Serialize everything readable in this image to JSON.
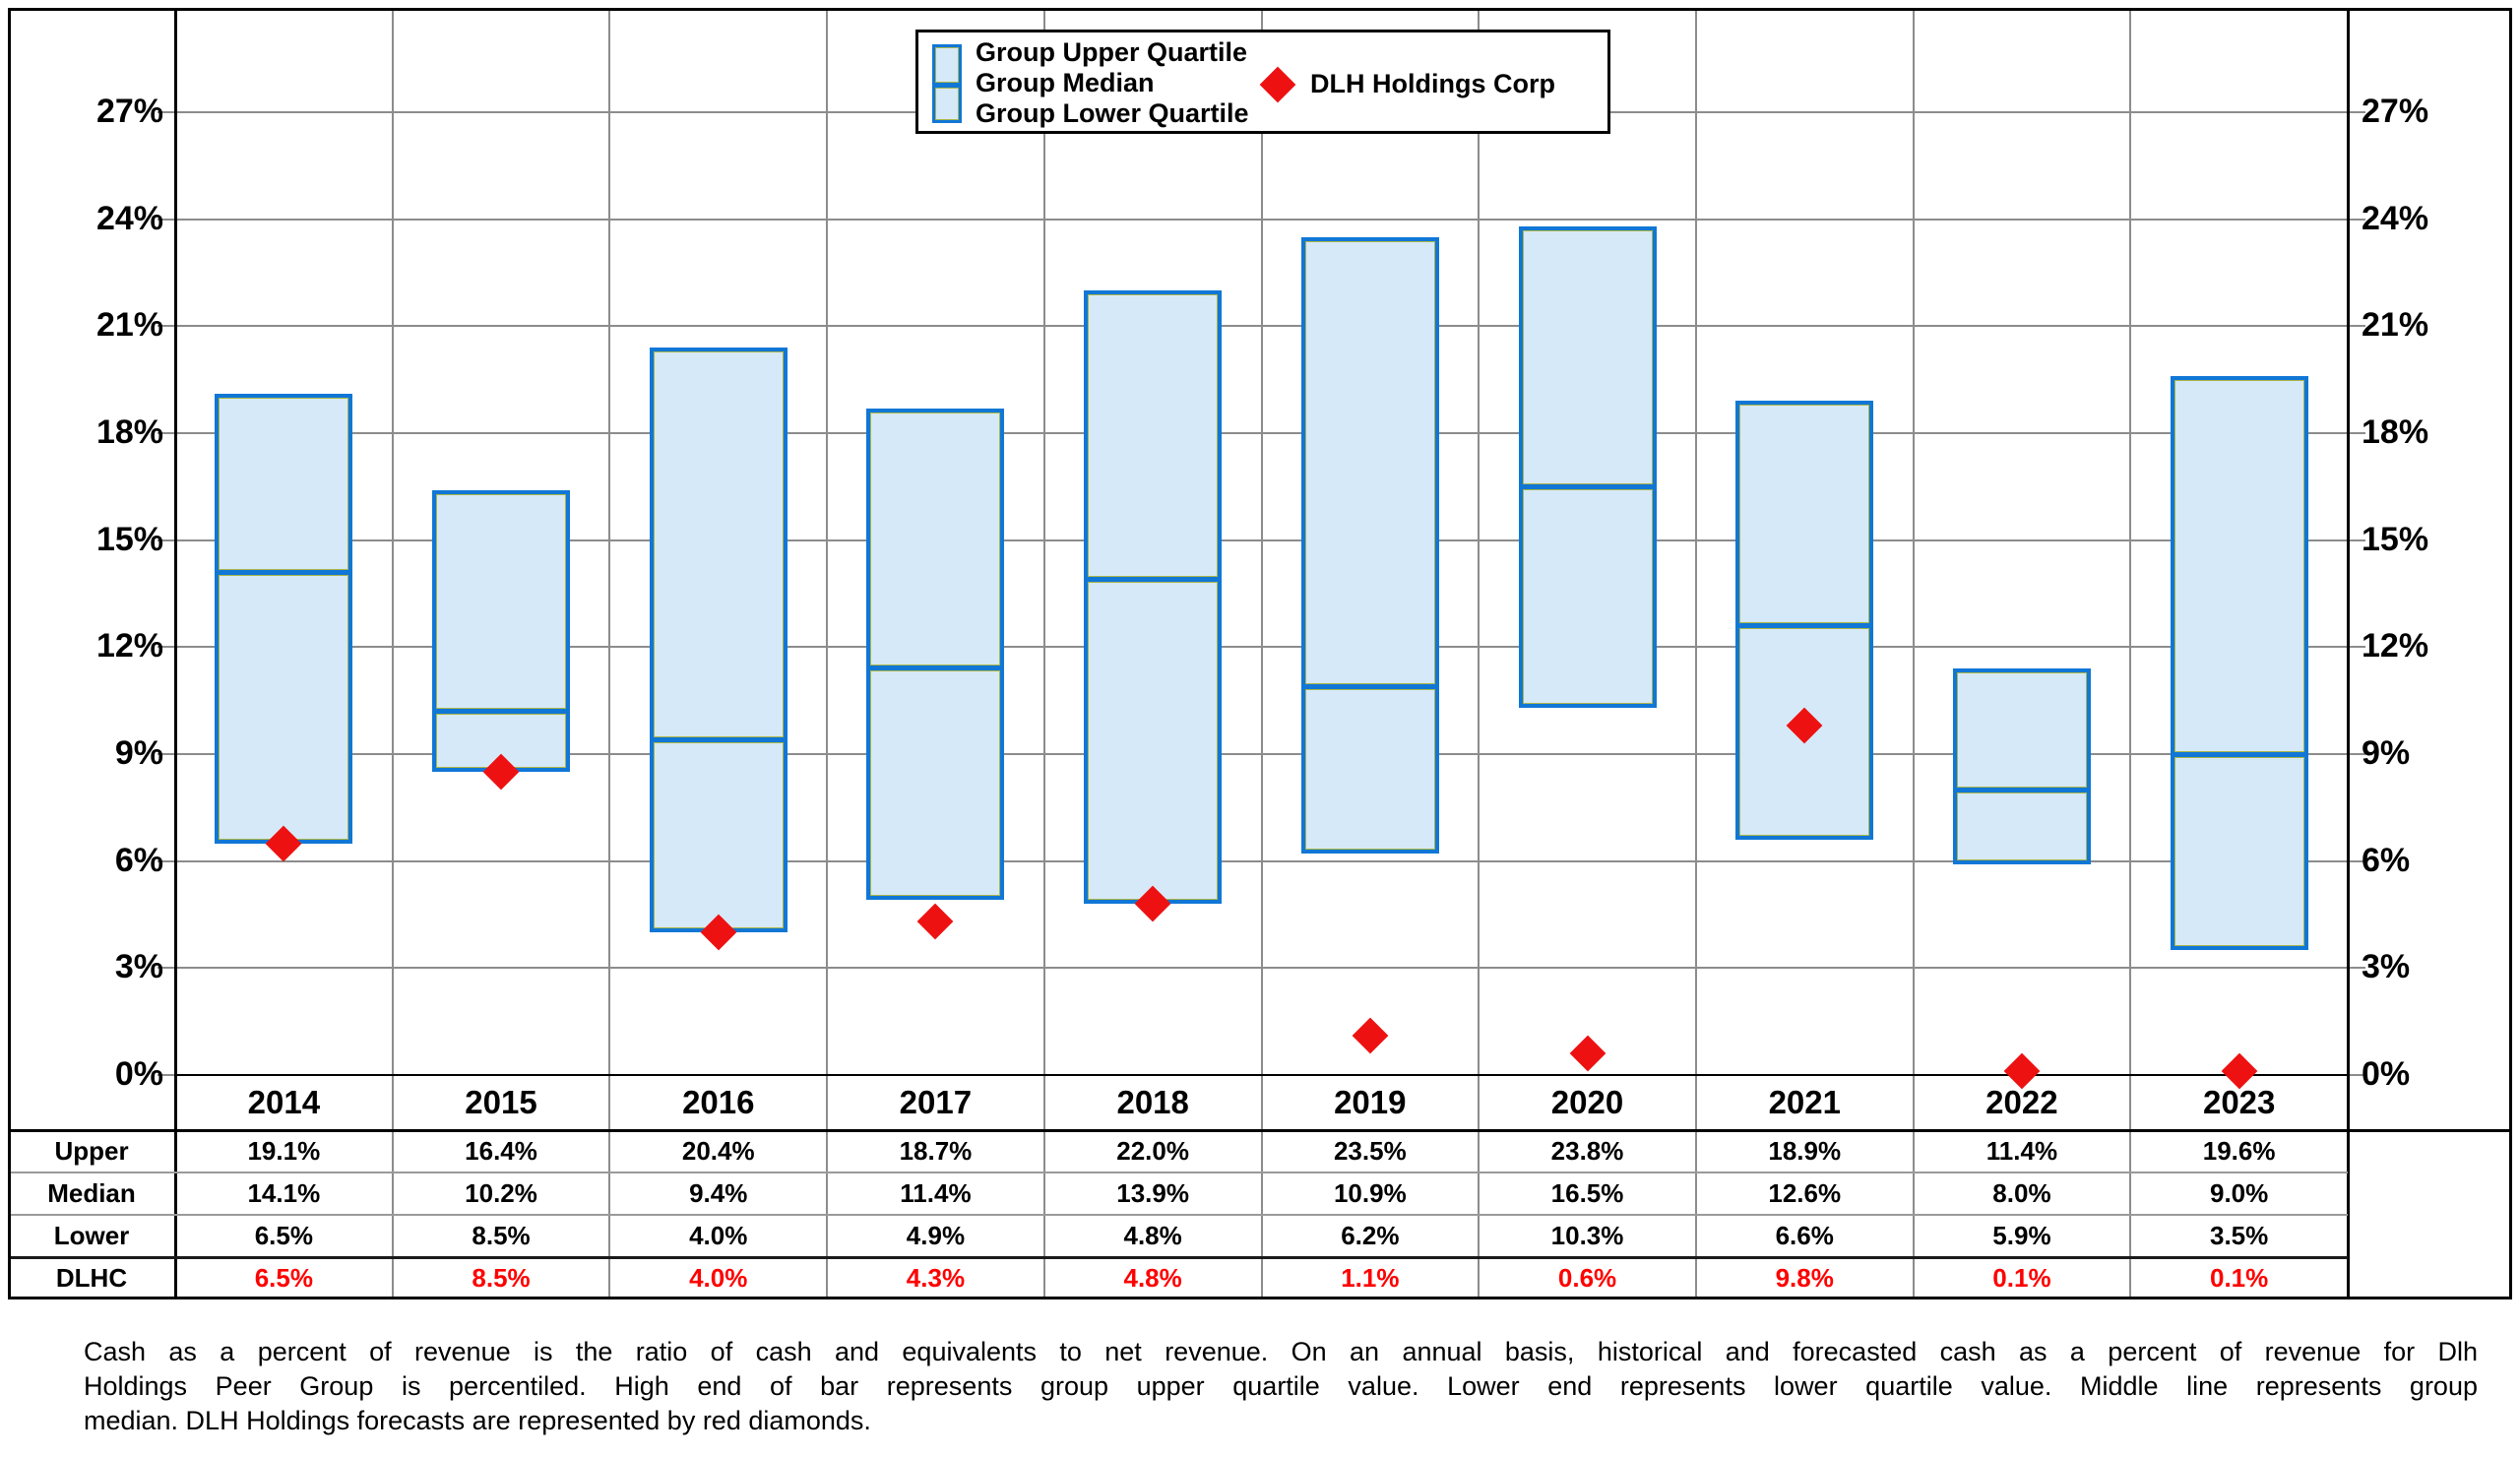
{
  "legend": {
    "swatch_labels": [
      "Group Upper Quartile",
      "Group Median",
      "Group Lower Quartile"
    ],
    "marker_label": "DLH Holdings Corp"
  },
  "chart_data": {
    "type": "bar",
    "subtype": "floating-quartile-range-bars-with-diamond-markers",
    "categories": [
      "2014",
      "2015",
      "2016",
      "2017",
      "2018",
      "2019",
      "2020",
      "2021",
      "2022",
      "2023"
    ],
    "series": [
      {
        "name": "Group Upper Quartile",
        "values": [
          19.1,
          16.4,
          20.4,
          18.7,
          22.0,
          23.5,
          23.8,
          18.9,
          11.4,
          19.6
        ]
      },
      {
        "name": "Group Median",
        "values": [
          14.1,
          10.2,
          9.4,
          11.4,
          13.9,
          10.9,
          16.5,
          12.6,
          8.0,
          9.0
        ]
      },
      {
        "name": "Group Lower Quartile",
        "values": [
          6.5,
          8.5,
          4.0,
          4.9,
          4.8,
          6.2,
          10.3,
          6.6,
          5.9,
          3.5
        ]
      },
      {
        "name": "DLH Holdings Corp",
        "values": [
          6.5,
          8.5,
          4.0,
          4.3,
          4.8,
          1.1,
          0.6,
          9.8,
          0.1,
          0.1
        ]
      }
    ],
    "xlabel": "",
    "ylabel": "",
    "ylim": [
      0,
      29.9
    ],
    "y_ticks": [
      0,
      3,
      6,
      9,
      12,
      15,
      18,
      21,
      24,
      27
    ],
    "tick_suffix": "%",
    "grid": true,
    "legend_position": "top-center",
    "colors": {
      "bar_fill": "#d6e9f8",
      "bar_border": "#1177d6",
      "bar_inner_accent": "#a9b548",
      "marker": "#ee1111",
      "grid_line": "#8c8c8c",
      "dlhc_table_text": "#ff0000"
    }
  },
  "table": {
    "rows": [
      {
        "label": "Upper",
        "values": [
          "19.1%",
          "16.4%",
          "20.4%",
          "18.7%",
          "22.0%",
          "23.5%",
          "23.8%",
          "18.9%",
          "11.4%",
          "19.6%"
        ],
        "highlight": false
      },
      {
        "label": "Median",
        "values": [
          "14.1%",
          "10.2%",
          "9.4%",
          "11.4%",
          "13.9%",
          "10.9%",
          "16.5%",
          "12.6%",
          "8.0%",
          "9.0%"
        ],
        "highlight": false
      },
      {
        "label": "Lower",
        "values": [
          "6.5%",
          "8.5%",
          "4.0%",
          "4.9%",
          "4.8%",
          "6.2%",
          "10.3%",
          "6.6%",
          "5.9%",
          "3.5%"
        ],
        "highlight": false
      },
      {
        "label": "DLHC",
        "values": [
          "6.5%",
          "8.5%",
          "4.0%",
          "4.3%",
          "4.8%",
          "1.1%",
          "0.6%",
          "9.8%",
          "0.1%",
          "0.1%"
        ],
        "highlight": true
      }
    ]
  },
  "footnote": {
    "lines": [
      "Cash as a percent of revenue is the ratio of cash and equivalents to net revenue.  On an annual basis, historical and forecasted cash as a percent of revenue for Dlh",
      "Holdings Peer Group is percentiled.  High end of bar represents group upper quartile value.  Lower end represents lower quartile value.  Middle line represents group",
      "median.  DLH Holdings forecasts are represented by red diamonds."
    ]
  }
}
